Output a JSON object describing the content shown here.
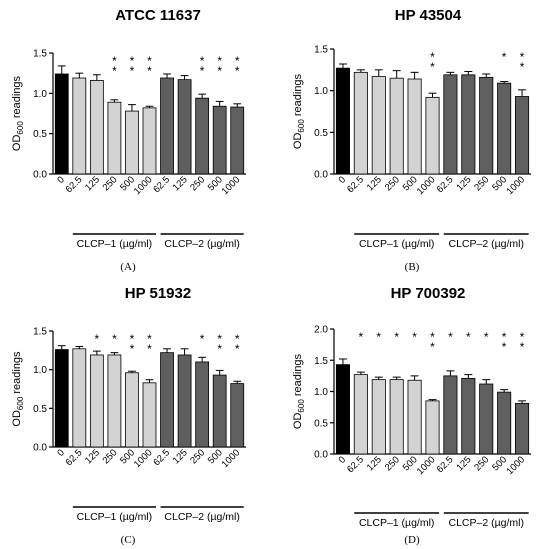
{
  "colors": {
    "control": "#000000",
    "clcp1": "#d3d3d3",
    "clcp2": "#5f5f5f"
  },
  "chart_data": [
    {
      "type": "bar",
      "title": "ATCC 11637",
      "panel_label": "(A)",
      "ylabel": "OD600 readings",
      "ylim": [
        0,
        1.5
      ],
      "yticks": [
        "0.0",
        "0.5",
        "1.0",
        "1.5"
      ],
      "categories": [
        "0",
        "62.5",
        "125",
        "250",
        "500",
        "1000",
        "62.5",
        "125",
        "250",
        "500",
        "1000"
      ],
      "groups": [
        {
          "label": "CLCP–1 (µg/ml)"
        },
        {
          "label": "CLCP–2 (µg/ml)"
        }
      ],
      "values": [
        1.24,
        1.19,
        1.16,
        0.89,
        0.78,
        0.82,
        1.19,
        1.17,
        0.94,
        0.84,
        0.83
      ],
      "errors": [
        0.1,
        0.06,
        0.07,
        0.03,
        0.08,
        0.02,
        0.05,
        0.05,
        0.05,
        0.06,
        0.04
      ],
      "stars": [
        "",
        "",
        "",
        "**",
        "**",
        "**",
        "",
        "",
        "**",
        "**",
        "**"
      ]
    },
    {
      "type": "bar",
      "title": "HP 43504",
      "panel_label": "(B)",
      "ylabel": "OD600 readings",
      "ylim": [
        0,
        1.5
      ],
      "yticks": [
        "0.0",
        "0.5",
        "1.0",
        "1.5"
      ],
      "categories": [
        "0",
        "62.5",
        "125",
        "250",
        "500",
        "1000",
        "62.5",
        "125",
        "250",
        "500",
        "1000"
      ],
      "groups": [
        {
          "label": "CLCP–1 (µg/ml)"
        },
        {
          "label": "CLCP–2 (µg/ml)"
        }
      ],
      "values": [
        1.27,
        1.22,
        1.17,
        1.15,
        1.14,
        0.92,
        1.19,
        1.19,
        1.16,
        1.09,
        0.93
      ],
      "errors": [
        0.05,
        0.03,
        0.08,
        0.09,
        0.08,
        0.05,
        0.03,
        0.04,
        0.04,
        0.02,
        0.08
      ],
      "stars": [
        "",
        "",
        "",
        "",
        "",
        "**",
        "",
        "",
        "",
        "*",
        "**"
      ]
    },
    {
      "type": "bar",
      "title": "HP 51932",
      "panel_label": "(C)",
      "ylabel": "OD600 readings",
      "ylim": [
        0,
        1.5
      ],
      "yticks": [
        "0.0",
        "0.5",
        "1.0",
        "1.5"
      ],
      "categories": [
        "0",
        "62.5",
        "125",
        "250",
        "500",
        "1000",
        "62.5",
        "125",
        "250",
        "500",
        "1000"
      ],
      "groups": [
        {
          "label": "CLCP–1 (µg/ml)"
        },
        {
          "label": "CLCP–2 (µg/ml)"
        }
      ],
      "values": [
        1.26,
        1.27,
        1.19,
        1.19,
        0.96,
        0.83,
        1.22,
        1.19,
        1.1,
        0.93,
        0.82
      ],
      "errors": [
        0.05,
        0.03,
        0.05,
        0.03,
        0.02,
        0.04,
        0.05,
        0.08,
        0.06,
        0.06,
        0.03
      ],
      "stars": [
        "",
        "",
        "*",
        "*",
        "**",
        "**",
        "",
        "",
        "*",
        "**",
        "**"
      ]
    },
    {
      "type": "bar",
      "title": "HP 700392",
      "panel_label": "(D)",
      "ylabel": "OD600 readings",
      "ylim": [
        0,
        2.0
      ],
      "yticks": [
        "0.0",
        "0.5",
        "1.0",
        "1.5",
        "2.0"
      ],
      "categories": [
        "0",
        "62.5",
        "125",
        "250",
        "500",
        "1000",
        "62.5",
        "125",
        "250",
        "500",
        "1000"
      ],
      "groups": [
        {
          "label": "CLCP–1 (µg/ml)"
        },
        {
          "label": "CLCP–2 (µg/ml)"
        }
      ],
      "values": [
        1.43,
        1.27,
        1.19,
        1.19,
        1.18,
        0.85,
        1.25,
        1.21,
        1.12,
        0.99,
        0.81
      ],
      "errors": [
        0.09,
        0.04,
        0.04,
        0.04,
        0.07,
        0.02,
        0.08,
        0.06,
        0.07,
        0.04,
        0.04
      ],
      "stars": [
        "",
        "*",
        "*",
        "*",
        "*",
        "**",
        "*",
        "*",
        "*",
        "**",
        "**"
      ]
    }
  ]
}
